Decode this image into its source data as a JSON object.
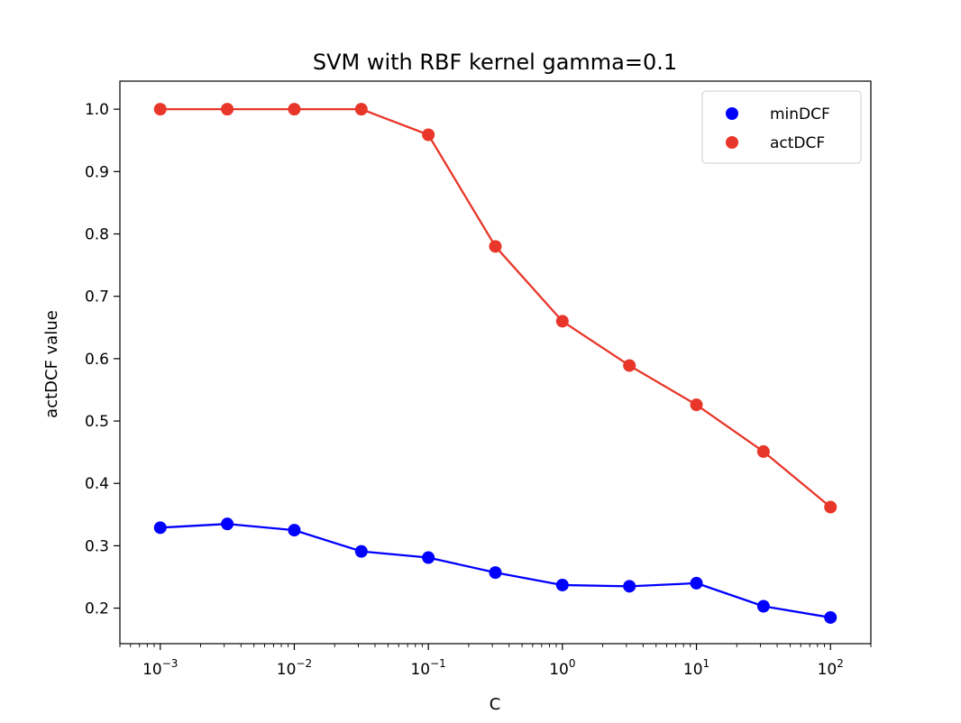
{
  "chart_data": {
    "type": "line",
    "title": "SVM with RBF kernel gamma=0.1",
    "xlabel": "C",
    "ylabel": "actDCF value",
    "x_scale": "log",
    "x": [
      0.001,
      0.0031623,
      0.01,
      0.031623,
      0.1,
      0.31623,
      1,
      3.1623,
      10,
      31.623,
      100
    ],
    "xlim": [
      0.0005,
      200
    ],
    "ylim": [
      0.143,
      1.045
    ],
    "x_ticks": [
      {
        "value": 0.001,
        "base": "10",
        "exp": "−3"
      },
      {
        "value": 0.01,
        "base": "10",
        "exp": "−2"
      },
      {
        "value": 0.1,
        "base": "10",
        "exp": "−1"
      },
      {
        "value": 1,
        "base": "10",
        "exp": "0"
      },
      {
        "value": 10,
        "base": "10",
        "exp": "1"
      },
      {
        "value": 100,
        "base": "10",
        "exp": "2"
      }
    ],
    "y_ticks": [
      "0.2",
      "0.3",
      "0.4",
      "0.5",
      "0.6",
      "0.7",
      "0.8",
      "0.9",
      "1.0"
    ],
    "grid": false,
    "legend_position": "top-right",
    "series": [
      {
        "name": "minDCF",
        "color": "#0000ff",
        "values": [
          0.329,
          0.335,
          0.325,
          0.291,
          0.281,
          0.257,
          0.237,
          0.235,
          0.24,
          0.203,
          0.185
        ]
      },
      {
        "name": "actDCF",
        "color": "#e8372a",
        "values": [
          1.0,
          1.0,
          1.0,
          1.0,
          0.959,
          0.78,
          0.66,
          0.589,
          0.526,
          0.451,
          0.362
        ]
      }
    ]
  }
}
